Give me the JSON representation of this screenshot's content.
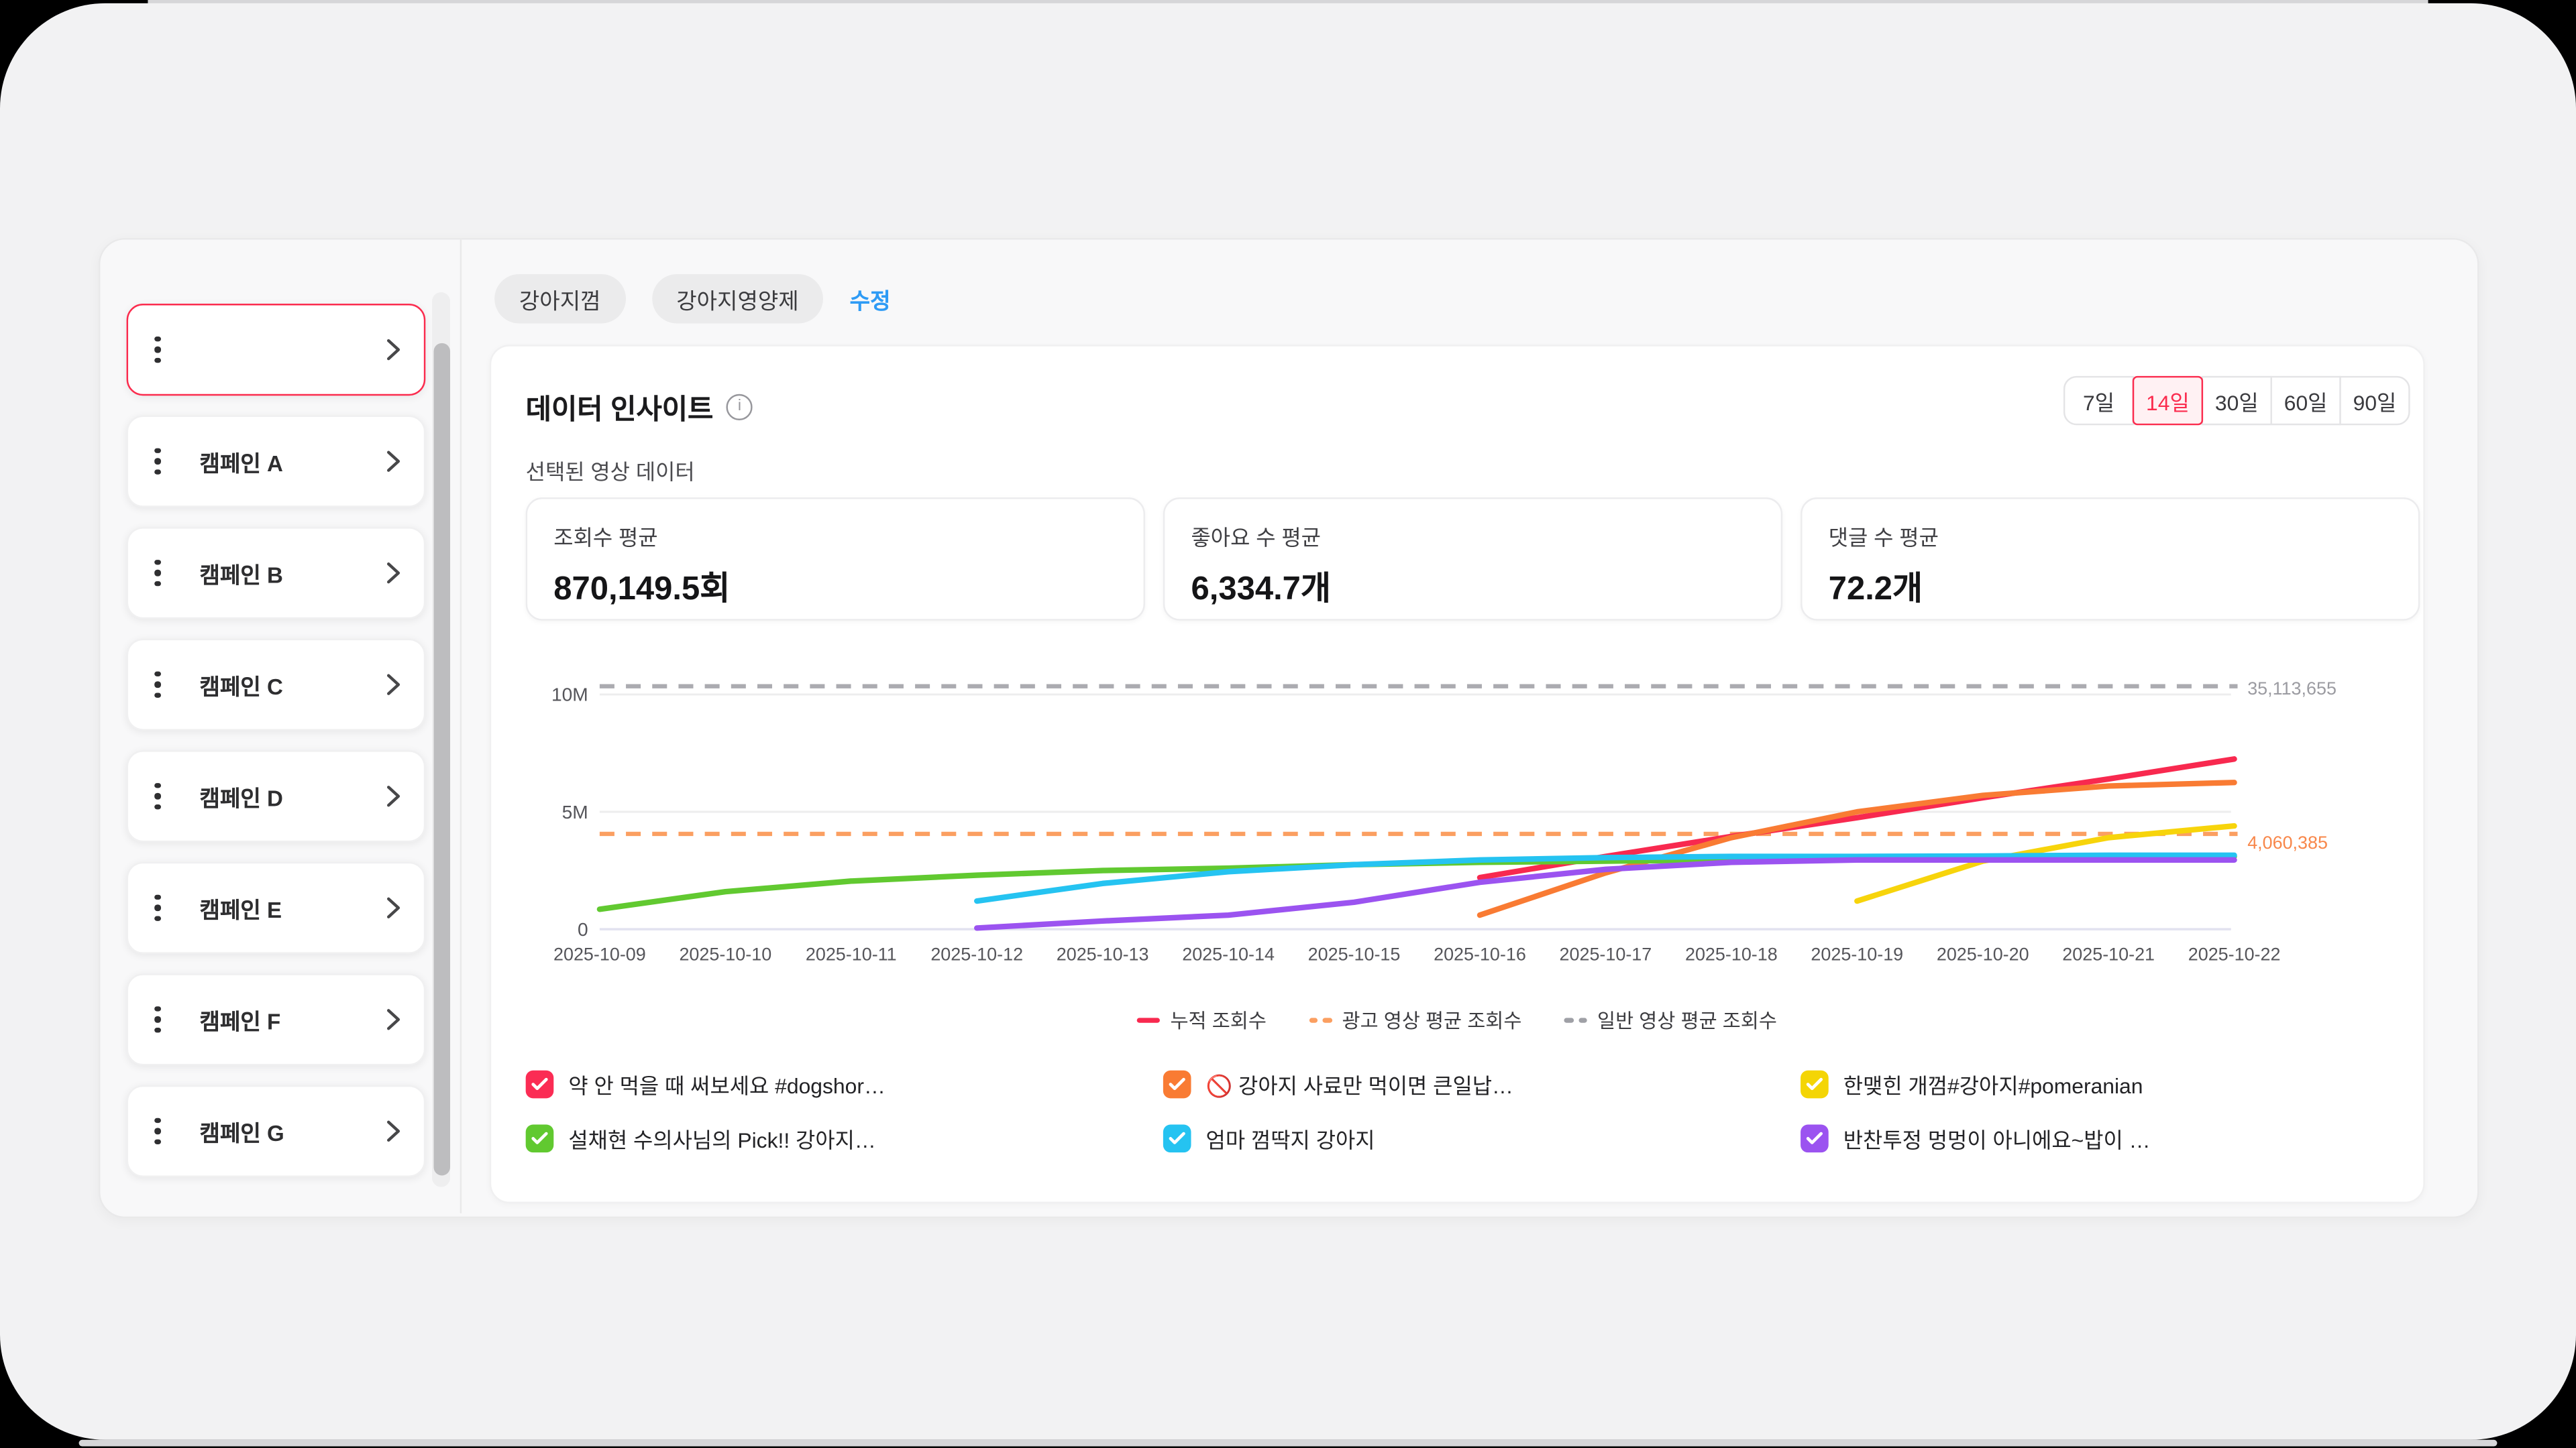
{
  "page": {
    "tags": [
      "강아지껌",
      "강아지영양제"
    ],
    "edit_link": "수정"
  },
  "sidebar": {
    "selected_index": 0,
    "items": [
      "",
      "캠페인 A",
      "캠페인 B",
      "캠페인 C",
      "캠페인 D",
      "캠페인 E",
      "캠페인 F",
      "캠페인 G"
    ]
  },
  "insight": {
    "title": "데이터 인사이트",
    "info_icon": "info-circle",
    "range_options": [
      "7일",
      "14일",
      "30일",
      "60일",
      "90일"
    ],
    "selected_range": "14일",
    "section_label": "선택된 영상 데이터",
    "stats": [
      {
        "label": "조회수 평균",
        "value": "870,149.5회"
      },
      {
        "label": "좋아요 수 평균",
        "value": "6,334.7개"
      },
      {
        "label": "댓글 수 평균",
        "value": "72.2개"
      }
    ]
  },
  "chart_data": {
    "type": "line",
    "x": [
      "2025-10-09",
      "2025-10-10",
      "2025-10-11",
      "2025-10-12",
      "2025-10-13",
      "2025-10-14",
      "2025-10-15",
      "2025-10-16",
      "2025-10-17",
      "2025-10-18",
      "2025-10-19",
      "2025-10-20",
      "2025-10-21",
      "2025-10-22"
    ],
    "y_ticks": [
      {
        "label": "0",
        "value": 0
      },
      {
        "label": "5M",
        "value": 5000000
      },
      {
        "label": "10M",
        "value": 10000000
      }
    ],
    "ylim": [
      0,
      10500000
    ],
    "grid": true,
    "legend": [
      {
        "label": "누적 조회수",
        "style": "solid",
        "color": "#f8294f"
      },
      {
        "label": "광고 영상 평균 조회수",
        "style": "dashed",
        "color": "#fb9f61"
      },
      {
        "label": "일반 영상 평균 조회수",
        "style": "dashed",
        "color": "#9fa0a6"
      }
    ],
    "reference_lines": [
      {
        "label": "35,113,655",
        "value": 35113655,
        "color": "#ababb0",
        "label_color": "#9b9ba1",
        "style": "dashed",
        "clamped_to_top": true
      },
      {
        "label": "4,060,385",
        "value": 4060385,
        "color": "#fb9f61",
        "label_color": "#f8874a",
        "style": "dashed",
        "clamped_to_top": false
      }
    ],
    "series": [
      {
        "name": "약 안 먹을 때 써보세요 #dogshor…",
        "color": "#f8294f",
        "values": [
          null,
          null,
          null,
          null,
          null,
          null,
          null,
          2200000,
          3100000,
          3950000,
          4750000,
          5600000,
          6400000,
          7250000
        ]
      },
      {
        "name": "🚫 강아지 사료만 먹이면 큰일납…",
        "color": "#f97b33",
        "values": [
          null,
          null,
          null,
          null,
          null,
          null,
          null,
          600000,
          2400000,
          3900000,
          5000000,
          5700000,
          6100000,
          6250000
        ]
      },
      {
        "name": "한맺힌 개껌#강아지#pomeranian",
        "color": "#f7d40b",
        "values": [
          null,
          null,
          null,
          null,
          null,
          null,
          null,
          null,
          null,
          null,
          1200000,
          2900000,
          3900000,
          4400000
        ]
      },
      {
        "name": "설채현 수의사님의 Pick!! 강아지…",
        "color": "#61c930",
        "values": [
          850000,
          1600000,
          2050000,
          2300000,
          2500000,
          2600000,
          2750000,
          2850000,
          2900000,
          2950000,
          2980000,
          3000000,
          3050000,
          3100000
        ]
      },
      {
        "name": "엄마 껌딱지 강아지",
        "color": "#25c3f1",
        "values": [
          null,
          null,
          null,
          1200000,
          1950000,
          2450000,
          2750000,
          2950000,
          3050000,
          3100000,
          3100000,
          3120000,
          3150000,
          3150000
        ]
      },
      {
        "name": "반찬투정 멍멍이 아니에요~밥이 …",
        "color": "#9b53f0",
        "values": [
          null,
          null,
          null,
          50000,
          350000,
          600000,
          1150000,
          2000000,
          2550000,
          2850000,
          2950000,
          2950000,
          2950000,
          2950000
        ]
      }
    ]
  },
  "videos": {
    "items": [
      {
        "title": "약 안 먹을 때 써보세요 #dogshor…",
        "color": "#fb2c54",
        "checked": true
      },
      {
        "title": "🚫 강아지 사료만 먹이면 큰일납…",
        "color": "#f97b33",
        "checked": true
      },
      {
        "title": "한맺힌 개껌#강아지#pomeranian",
        "color": "#f4d505",
        "checked": true
      },
      {
        "title": "설채현 수의사님의 Pick!! 강아지…",
        "color": "#61c930",
        "checked": true
      },
      {
        "title": "엄마 껌딱지 강아지",
        "color": "#25c3f1",
        "checked": true
      },
      {
        "title": "반찬투정 멍멍이 아니에요~밥이 …",
        "color": "#9b53f0",
        "checked": true
      }
    ]
  }
}
